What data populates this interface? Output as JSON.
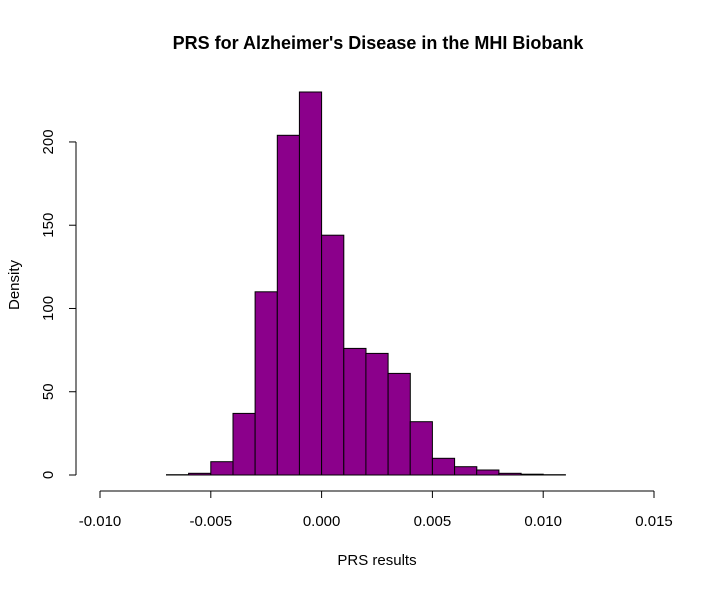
{
  "chart_data": {
    "type": "bar",
    "title": "PRS for Alzheimer's Disease in the MHI Biobank",
    "xlabel": "PRS results",
    "ylabel": "Density",
    "xlim": [
      -0.01,
      0.015
    ],
    "ylim": [
      0,
      230
    ],
    "bin_width": 0.001,
    "bins": [
      {
        "start": -0.007,
        "value": 0.2
      },
      {
        "start": -0.006,
        "value": 1
      },
      {
        "start": -0.005,
        "value": 8
      },
      {
        "start": -0.004,
        "value": 37
      },
      {
        "start": -0.003,
        "value": 110
      },
      {
        "start": -0.002,
        "value": 204
      },
      {
        "start": -0.001,
        "value": 230
      },
      {
        "start": 0.0,
        "value": 144
      },
      {
        "start": 0.001,
        "value": 76
      },
      {
        "start": 0.002,
        "value": 73
      },
      {
        "start": 0.003,
        "value": 61
      },
      {
        "start": 0.004,
        "value": 32
      },
      {
        "start": 0.005,
        "value": 10
      },
      {
        "start": 0.006,
        "value": 5
      },
      {
        "start": 0.007,
        "value": 3
      },
      {
        "start": 0.008,
        "value": 1
      },
      {
        "start": 0.009,
        "value": 0.5
      },
      {
        "start": 0.01,
        "value": 0.2
      }
    ],
    "x_ticks": [
      {
        "value": -0.01,
        "label": "-0.010"
      },
      {
        "value": -0.005,
        "label": "-0.005"
      },
      {
        "value": 0.0,
        "label": "0.000"
      },
      {
        "value": 0.005,
        "label": "0.005"
      },
      {
        "value": 0.01,
        "label": "0.010"
      },
      {
        "value": 0.015,
        "label": "0.015"
      }
    ],
    "y_ticks": [
      {
        "value": 0,
        "label": "0"
      },
      {
        "value": 50,
        "label": "50"
      },
      {
        "value": 100,
        "label": "100"
      },
      {
        "value": 150,
        "label": "150"
      },
      {
        "value": 200,
        "label": "200"
      }
    ],
    "bar_color": "#8B008B",
    "grid": false,
    "legend": "none"
  }
}
